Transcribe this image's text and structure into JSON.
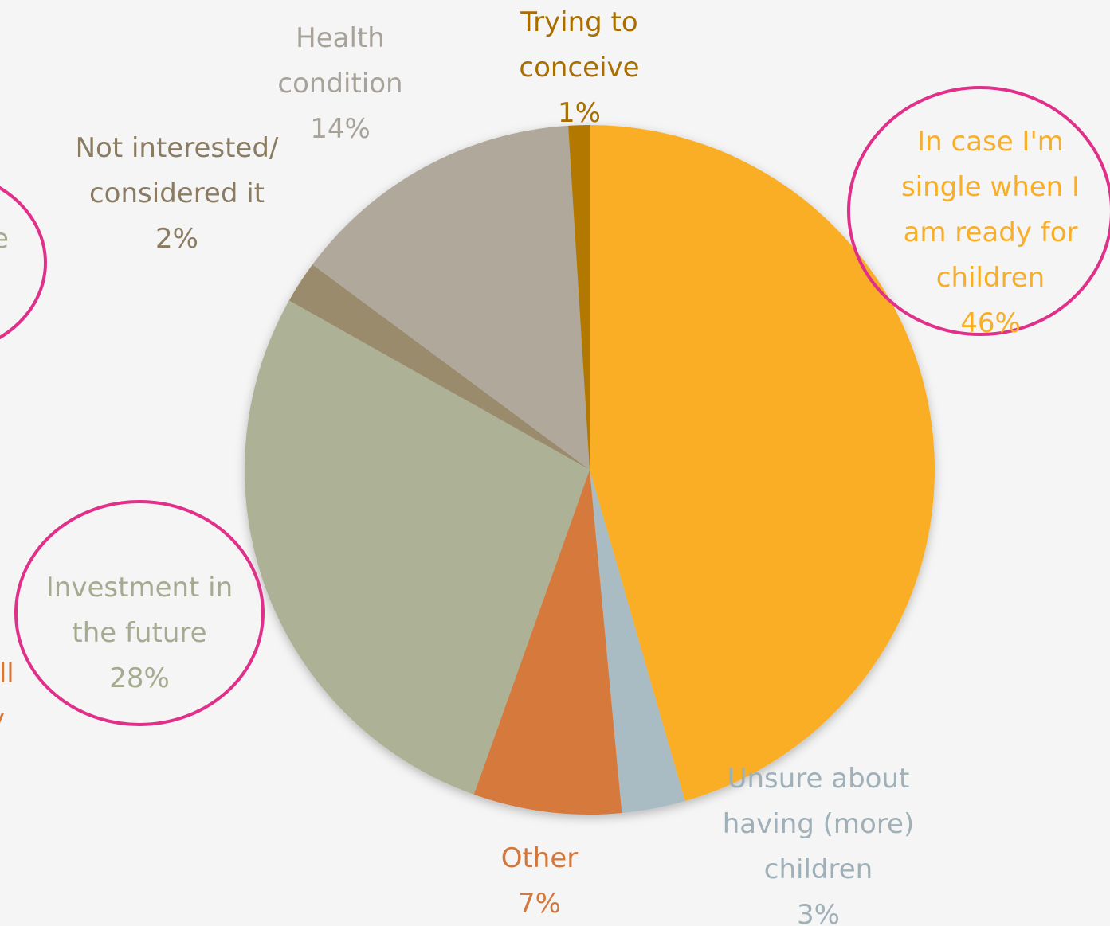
{
  "chart_data": {
    "type": "pie",
    "categories": [
      "In case I'm single when I am ready for children",
      "Unsure about having (more) children",
      "Other",
      "Investment in the future",
      "Not interested/ considered it",
      "Health condition",
      "Trying to conceive"
    ],
    "values": [
      46,
      3,
      7,
      28,
      2,
      14,
      1
    ],
    "value_labels": [
      "46%",
      "3%",
      "7%",
      "28%",
      "2%",
      "14%",
      "1%"
    ],
    "colors": [
      "#f9ae27",
      "#a9bcc3",
      "#d5793d",
      "#adb195",
      "#9b8b6d",
      "#b0a89b",
      "#b27800"
    ],
    "label_colors": [
      "#f9ae27",
      "#9fb0b8",
      "#d4773c",
      "#a5ab90",
      "#8a7c62",
      "#a8a39a",
      "#a86e00"
    ],
    "annotations": [
      {
        "text": "e",
        "color": "#a5ab90"
      },
      {
        "text": "all",
        "color": "#d4773c"
      },
      {
        "text": "y",
        "color": "#d4773c"
      }
    ]
  }
}
